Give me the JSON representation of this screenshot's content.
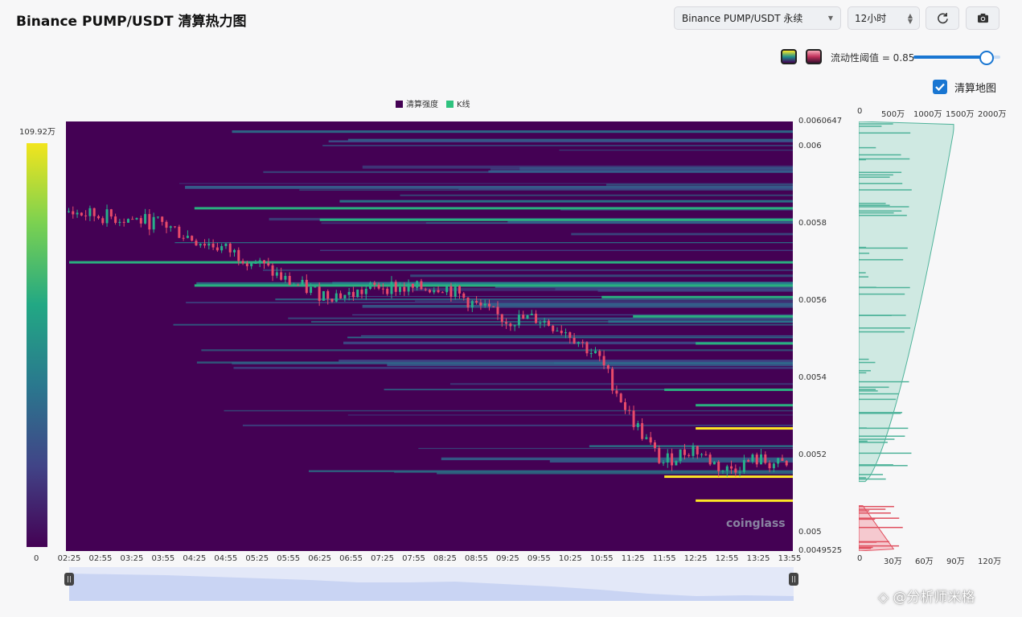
{
  "header": {
    "title": "Binance PUMP/USDT 清算热力图"
  },
  "toolbar": {
    "pair_select": {
      "value": "Binance PUMP/USDT 永续"
    },
    "range_select": {
      "value": "12小时"
    },
    "refresh_icon": "refresh-icon",
    "screenshot_icon": "camera-icon"
  },
  "controls": {
    "threshold_label": "流动性阈值 = 0.85",
    "threshold_value": 0.85,
    "palette_viridis_icon": "viridis-palette-icon",
    "palette_pink_icon": "pink-palette-icon",
    "liq_map_label": "清算地图",
    "liq_map_checked": true
  },
  "legend": {
    "intensity": "清算强度",
    "kline": "K线"
  },
  "colorbar": {
    "max_label": "109.92万",
    "min_label": "0"
  },
  "colors": {
    "bg_low": "#440154",
    "mid": "#21918c",
    "high": "#fde725",
    "candle_up": "#26b08a",
    "candle_down": "#e84a6a",
    "profile_up": "#4fb39a",
    "profile_down": "#e0505f"
  },
  "chart_data": {
    "type": "heatmap",
    "y_ticks": [
      "0.0060647",
      "0.006",
      "0.0058",
      "0.0056",
      "0.0054",
      "0.0052",
      "0.005",
      "0.0049525"
    ],
    "ylim": [
      0.0049525,
      0.0060647
    ],
    "x_ticks": [
      "02:25",
      "02:55",
      "03:25",
      "03:55",
      "04:25",
      "04:55",
      "05:25",
      "05:55",
      "06:25",
      "06:55",
      "07:25",
      "07:55",
      "08:25",
      "08:55",
      "09:25",
      "09:55",
      "10:25",
      "10:55",
      "11:25",
      "11:55",
      "12:25",
      "12:55",
      "13:25",
      "13:55"
    ],
    "price_path": [
      [
        "02:25",
        0.00583
      ],
      [
        "02:55",
        0.00582
      ],
      [
        "03:25",
        0.005812
      ],
      [
        "03:55",
        0.0058
      ],
      [
        "04:25",
        0.00576
      ],
      [
        "04:55",
        0.005735
      ],
      [
        "05:25",
        0.0057
      ],
      [
        "05:55",
        0.00565
      ],
      [
        "06:25",
        0.00562
      ],
      [
        "06:55",
        0.005615
      ],
      [
        "07:25",
        0.00564
      ],
      [
        "07:55",
        0.00563
      ],
      [
        "08:25",
        0.00564
      ],
      [
        "08:55",
        0.00559
      ],
      [
        "09:25",
        0.00555
      ],
      [
        "09:55",
        0.005555
      ],
      [
        "10:25",
        0.00552
      ],
      [
        "10:55",
        0.00545
      ],
      [
        "11:25",
        0.0053
      ],
      [
        "11:55",
        0.00518
      ],
      [
        "12:25",
        0.00522
      ],
      [
        "12:55",
        0.00516
      ],
      [
        "13:25",
        0.00519
      ],
      [
        "13:55",
        0.00517
      ]
    ],
    "liquidation_levels": [
      {
        "price": 0.00527,
        "start": "12:25",
        "strength": "high"
      },
      {
        "price": 0.005145,
        "start": "11:55",
        "strength": "high"
      },
      {
        "price": 0.005083,
        "start": "12:25",
        "strength": "high"
      },
      {
        "price": 0.00537,
        "start": "11:55",
        "strength": "mid"
      },
      {
        "price": 0.00533,
        "start": "12:25",
        "strength": "mid"
      },
      {
        "price": 0.00584,
        "start": "04:25",
        "strength": "mid"
      },
      {
        "price": 0.00581,
        "start": "06:25",
        "strength": "mid"
      },
      {
        "price": 0.0057,
        "start": "02:25",
        "strength": "mid"
      },
      {
        "price": 0.00564,
        "start": "04:25",
        "strength": "mid"
      },
      {
        "price": 0.00561,
        "start": "10:55",
        "strength": "mid"
      },
      {
        "price": 0.00556,
        "start": "11:25",
        "strength": "mid"
      },
      {
        "price": 0.00549,
        "start": "12:25",
        "strength": "mid"
      }
    ],
    "profile_top_ticks": [
      "0",
      "500万",
      "1000万",
      "1500万",
      "2000万"
    ],
    "profile_bottom_ticks": [
      "0",
      "30万",
      "60万",
      "90万",
      "120万"
    ]
  }
}
